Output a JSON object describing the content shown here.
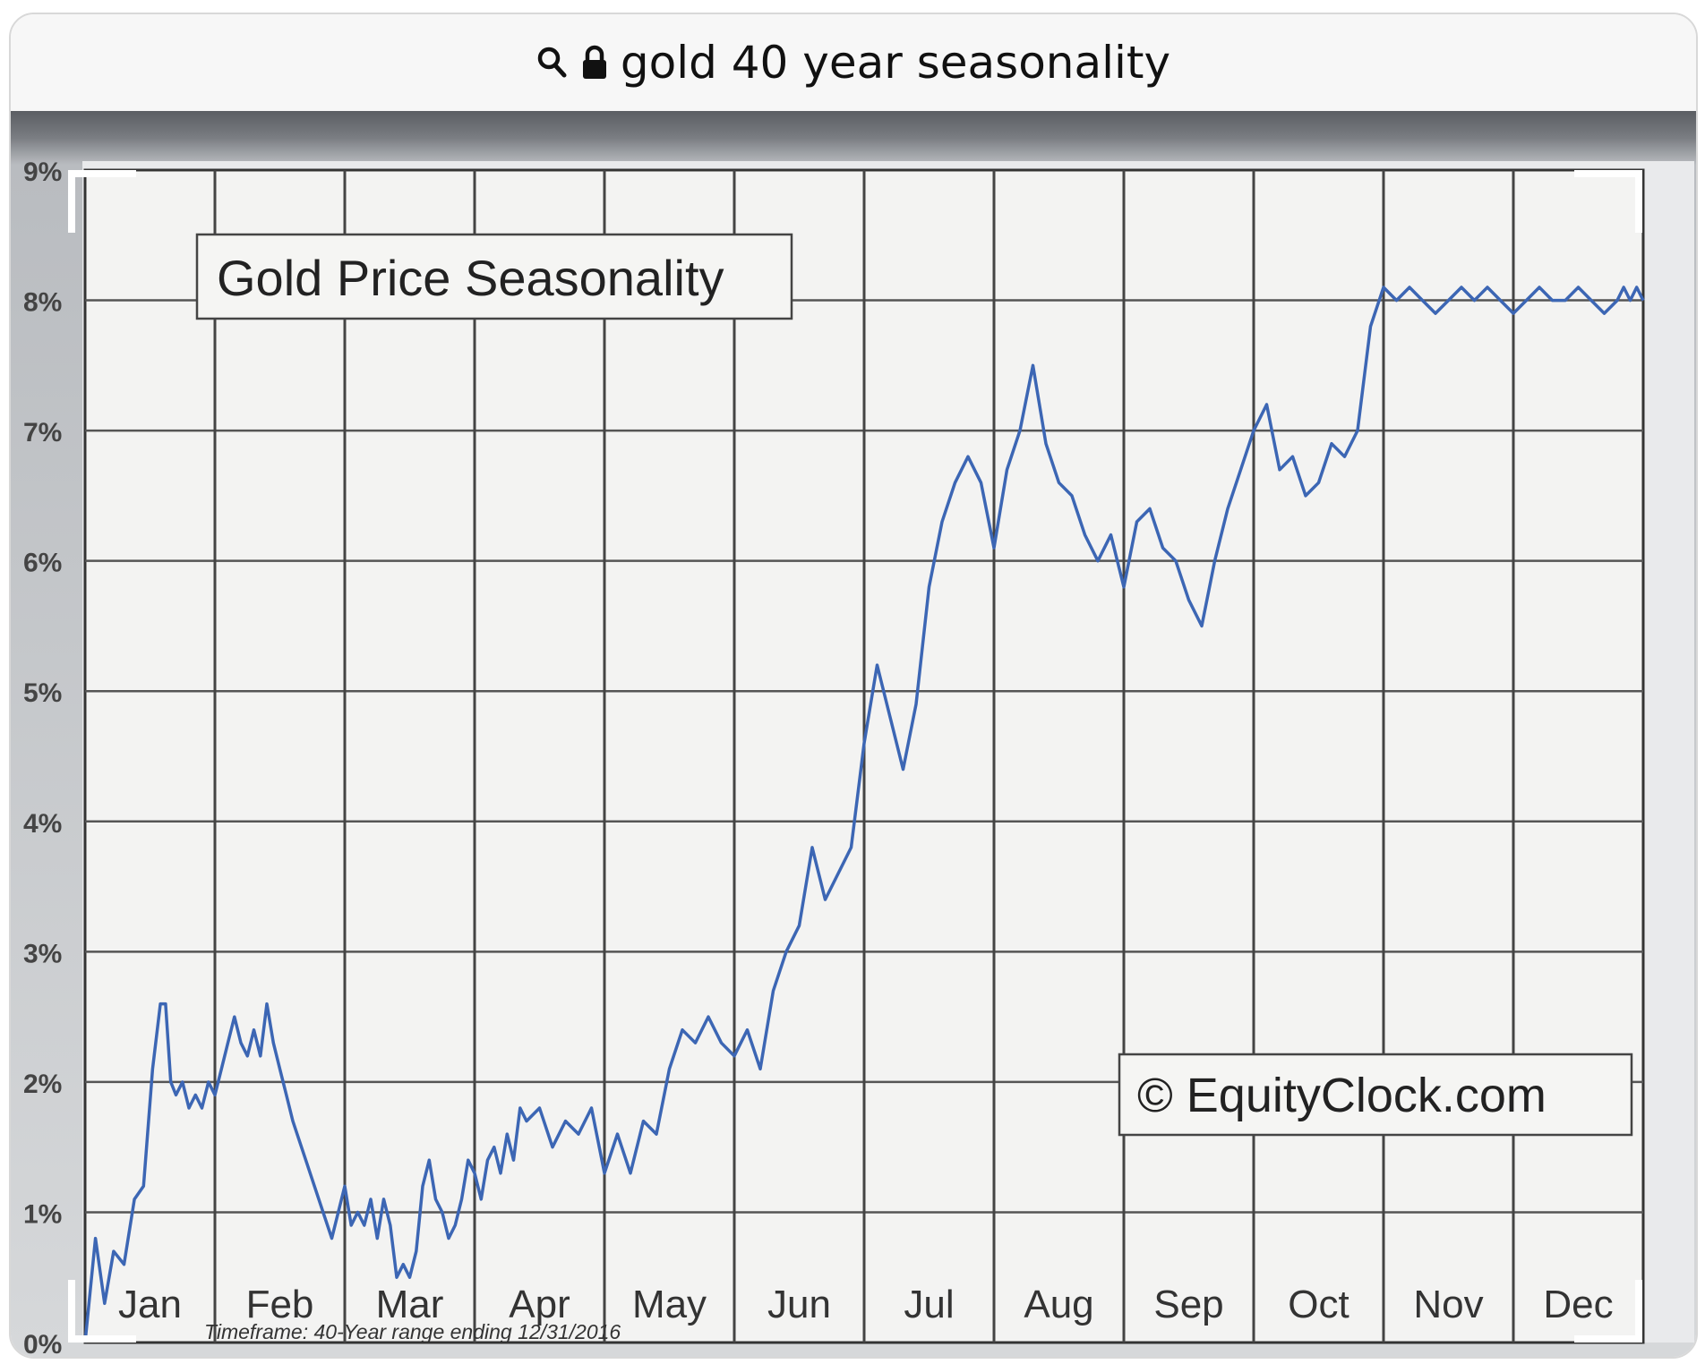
{
  "browser": {
    "url_text": "gold 40 year seasonality",
    "icons": [
      "search-icon",
      "lock-icon"
    ]
  },
  "chart_data": {
    "type": "line",
    "title": "Gold Price Seasonality",
    "watermark": "© EquityClock.com",
    "footnote": "Timeframe: 40-Year range ending 12/31/2016",
    "x_months": [
      "Jan",
      "Feb",
      "Mar",
      "Apr",
      "May",
      "Jun",
      "Jul",
      "Aug",
      "Sep",
      "Oct",
      "Nov",
      "Dec"
    ],
    "y_ticks": [
      "0%",
      "1%",
      "2%",
      "3%",
      "4%",
      "5%",
      "6%",
      "7%",
      "8%",
      "9%"
    ],
    "ylim": [
      0,
      9
    ],
    "grid": true,
    "line_color": "#3c66b4",
    "series": [
      {
        "x": [
          0,
          0.08,
          0.15,
          0.22,
          0.3,
          0.38,
          0.45,
          0.52,
          0.58,
          0.62,
          0.66,
          0.7,
          0.75,
          0.8,
          0.85,
          0.9,
          0.95,
          1.0,
          1.05,
          1.1,
          1.15,
          1.2,
          1.25,
          1.3,
          1.35,
          1.4,
          1.45,
          1.5,
          1.55,
          1.6,
          1.7,
          1.8,
          1.9,
          2.0,
          2.05,
          2.1,
          2.15,
          2.2,
          2.25,
          2.3,
          2.35,
          2.4,
          2.45,
          2.5,
          2.55,
          2.6,
          2.65,
          2.7,
          2.75,
          2.8,
          2.85,
          2.9,
          2.95,
          3.0,
          3.05,
          3.1,
          3.15,
          3.2,
          3.25,
          3.3,
          3.35,
          3.4,
          3.5,
          3.6,
          3.7,
          3.8,
          3.9,
          4.0,
          4.1,
          4.2,
          4.3,
          4.4,
          4.5,
          4.6,
          4.7,
          4.8,
          4.9,
          5.0,
          5.1,
          5.2,
          5.3,
          5.4,
          5.5,
          5.6,
          5.7,
          5.8,
          5.9,
          6.0,
          6.1,
          6.2,
          6.3,
          6.4,
          6.5,
          6.6,
          6.7,
          6.8,
          6.9,
          7.0,
          7.1,
          7.2,
          7.3,
          7.4,
          7.5,
          7.6,
          7.7,
          7.8,
          7.9,
          8.0,
          8.1,
          8.2,
          8.3,
          8.4,
          8.5,
          8.6,
          8.7,
          8.8,
          8.9,
          9.0,
          9.1,
          9.2,
          9.3,
          9.4,
          9.5,
          9.6,
          9.7,
          9.8,
          9.9,
          10.0,
          10.1,
          10.2,
          10.3,
          10.4,
          10.5,
          10.6,
          10.7,
          10.8,
          10.9,
          11.0,
          11.1,
          11.2,
          11.3,
          11.4,
          11.5,
          11.6,
          11.7,
          11.8,
          11.85,
          11.9,
          11.95,
          12.0
        ],
        "y": [
          0.0,
          0.8,
          0.3,
          0.7,
          0.6,
          1.1,
          1.2,
          2.1,
          2.6,
          2.6,
          2.0,
          1.9,
          2.0,
          1.8,
          1.9,
          1.8,
          2.0,
          1.9,
          2.1,
          2.3,
          2.5,
          2.3,
          2.2,
          2.4,
          2.2,
          2.6,
          2.3,
          2.1,
          1.9,
          1.7,
          1.4,
          1.1,
          0.8,
          1.2,
          0.9,
          1.0,
          0.9,
          1.1,
          0.8,
          1.1,
          0.9,
          0.5,
          0.6,
          0.5,
          0.7,
          1.2,
          1.4,
          1.1,
          1.0,
          0.8,
          0.9,
          1.1,
          1.4,
          1.3,
          1.1,
          1.4,
          1.5,
          1.3,
          1.6,
          1.4,
          1.8,
          1.7,
          1.8,
          1.5,
          1.7,
          1.6,
          1.8,
          1.3,
          1.6,
          1.3,
          1.7,
          1.6,
          2.1,
          2.4,
          2.3,
          2.5,
          2.3,
          2.2,
          2.4,
          2.1,
          2.7,
          3.0,
          3.2,
          3.8,
          3.4,
          3.6,
          3.8,
          4.6,
          5.2,
          4.8,
          4.4,
          4.9,
          5.8,
          6.3,
          6.6,
          6.8,
          6.6,
          6.1,
          6.7,
          7.0,
          7.5,
          6.9,
          6.6,
          6.5,
          6.2,
          6.0,
          6.2,
          5.8,
          6.3,
          6.4,
          6.1,
          6.0,
          5.7,
          5.5,
          6.0,
          6.4,
          6.7,
          7.0,
          7.2,
          6.7,
          6.8,
          6.5,
          6.6,
          6.9,
          6.8,
          7.0,
          7.8,
          8.1,
          8.0,
          8.1,
          8.0,
          7.9,
          8.0,
          8.1,
          8.0,
          8.1,
          8.0,
          7.9,
          8.0,
          8.1,
          8.0,
          8.0,
          8.1,
          8.0,
          7.9,
          8.0,
          8.1,
          8.0,
          8.1,
          8.0
        ]
      }
    ]
  }
}
